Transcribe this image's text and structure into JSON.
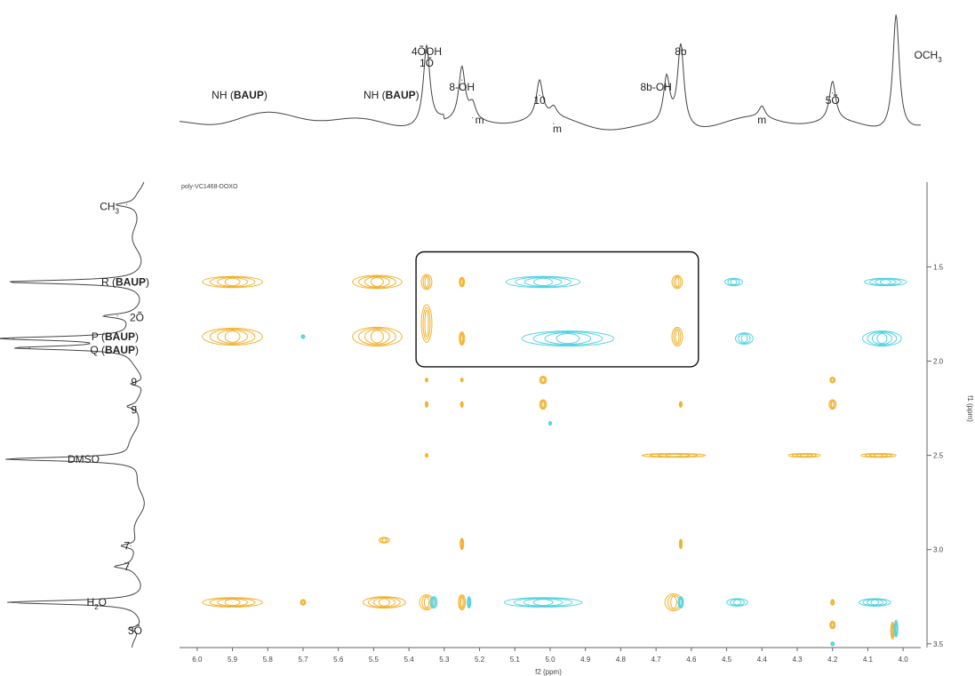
{
  "chart_data": {
    "type": "heatmap",
    "title": "poly-VC1468-DOXO",
    "xlabel": "f2 (ppm)",
    "ylabel": "f1 (ppm)",
    "xlim": [
      6.05,
      3.95
    ],
    "ylim": [
      1.05,
      3.52
    ],
    "x_ticks": [
      "6.0",
      "5.9",
      "5.8",
      "5.7",
      "5.6",
      "5.5",
      "5.4",
      "5.3",
      "5.2",
      "5.1",
      "5.0",
      "4.9",
      "4.8",
      "4.7",
      "4.6",
      "4.5",
      "4.4",
      "4.3",
      "4.2",
      "4.1",
      "4.0"
    ],
    "y_ticks": [
      "1.5",
      "2.0",
      "2.5",
      "3.0",
      "3.5"
    ],
    "colors": {
      "positive": "#f2b22e",
      "negative": "#52d3e3",
      "trace": "#444444"
    },
    "top_spectrum_peaks": [
      {
        "shift": 5.35,
        "height": 0.68
      },
      {
        "shift": 5.25,
        "height": 0.45
      },
      {
        "shift": 5.22,
        "height": 0.13
      },
      {
        "shift": 5.03,
        "height": 0.32
      },
      {
        "shift": 4.99,
        "height": 0.08
      },
      {
        "shift": 4.67,
        "height": 0.4
      },
      {
        "shift": 4.63,
        "height": 0.7
      },
      {
        "shift": 4.4,
        "height": 0.1
      },
      {
        "shift": 4.2,
        "height": 0.34
      },
      {
        "shift": 4.02,
        "height": 1.0
      }
    ],
    "left_spectrum_peaks": [
      {
        "shift": 1.17,
        "height": 0.15
      },
      {
        "shift": 1.58,
        "height": 1.0
      },
      {
        "shift": 1.76,
        "height": 0.22
      },
      {
        "shift": 1.88,
        "height": 1.0
      },
      {
        "shift": 1.93,
        "height": 0.88
      },
      {
        "shift": 2.12,
        "height": 0.1
      },
      {
        "shift": 2.24,
        "height": 0.08
      },
      {
        "shift": 2.52,
        "height": 1.0
      },
      {
        "shift": 2.98,
        "height": 0.12
      },
      {
        "shift": 3.09,
        "height": 0.14
      },
      {
        "shift": 3.28,
        "height": 1.0
      },
      {
        "shift": 3.42,
        "height": 0.09
      }
    ],
    "top_labels": [
      {
        "shift": 5.88,
        "text": "NH (",
        "bold": "BAUP",
        "tail": ")"
      },
      {
        "shift": 5.45,
        "text": "NH (",
        "bold": "BAUP",
        "tail": ")"
      },
      {
        "shift": 5.35,
        "text": "4ÕOH"
      },
      {
        "shift": 5.35,
        "text": "1Õ"
      },
      {
        "shift": 5.25,
        "text": "8-OH"
      },
      {
        "shift": 5.2,
        "text": "m"
      },
      {
        "shift": 5.03,
        "text": "10"
      },
      {
        "shift": 4.98,
        "text": "m"
      },
      {
        "shift": 4.7,
        "text": "8b-OH"
      },
      {
        "shift": 4.63,
        "text": "8b"
      },
      {
        "shift": 4.4,
        "text": "m"
      },
      {
        "shift": 4.2,
        "text": "5Õ"
      },
      {
        "shift": 3.99,
        "text": "OCH",
        "sub": "3"
      }
    ],
    "left_labels": [
      {
        "shift": 1.18,
        "text": "CH",
        "sub": "3"
      },
      {
        "shift": 1.58,
        "text": "R (",
        "bold": "BAUP",
        "tail": ")"
      },
      {
        "shift": 1.77,
        "text": "2Õ"
      },
      {
        "shift": 1.87,
        "text": "P (",
        "bold": "BAUP",
        "tail": ")"
      },
      {
        "shift": 1.94,
        "text": "Q (",
        "bold": "BAUP",
        "tail": ")"
      },
      {
        "shift": 2.11,
        "text": "9"
      },
      {
        "shift": 2.26,
        "text": "9"
      },
      {
        "shift": 2.52,
        "text": "DMSO"
      },
      {
        "shift": 2.98,
        "text": "7"
      },
      {
        "shift": 3.09,
        "text": "7"
      },
      {
        "shift": 3.28,
        "text": "H",
        "sub": "2",
        "tail": "O"
      },
      {
        "shift": 3.43,
        "text": "3Õ"
      }
    ],
    "highlight_box": {
      "x_range": [
        5.38,
        4.58
      ],
      "y_range": [
        1.42,
        2.03
      ]
    },
    "cross_peaks": [
      {
        "x": 5.9,
        "y": 1.58,
        "sign": "positive",
        "w": 0.17,
        "h": 0.06
      },
      {
        "x": 5.49,
        "y": 1.58,
        "sign": "positive",
        "w": 0.14,
        "h": 0.07
      },
      {
        "x": 5.35,
        "y": 1.58,
        "sign": "positive",
        "w": 0.03,
        "h": 0.08
      },
      {
        "x": 5.25,
        "y": 1.58,
        "sign": "positive",
        "w": 0.015,
        "h": 0.05
      },
      {
        "x": 4.64,
        "y": 1.58,
        "sign": "positive",
        "w": 0.03,
        "h": 0.07
      },
      {
        "x": 5.02,
        "y": 1.58,
        "sign": "negative",
        "w": 0.21,
        "h": 0.06
      },
      {
        "x": 4.48,
        "y": 1.58,
        "sign": "negative",
        "w": 0.05,
        "h": 0.04
      },
      {
        "x": 4.05,
        "y": 1.58,
        "sign": "negative",
        "w": 0.12,
        "h": 0.04
      },
      {
        "x": 5.9,
        "y": 1.87,
        "sign": "positive",
        "w": 0.17,
        "h": 0.09
      },
      {
        "x": 5.49,
        "y": 1.87,
        "sign": "positive",
        "w": 0.14,
        "h": 0.1
      },
      {
        "x": 5.35,
        "y": 1.8,
        "sign": "positive",
        "w": 0.03,
        "h": 0.2
      },
      {
        "x": 5.25,
        "y": 1.88,
        "sign": "positive",
        "w": 0.015,
        "h": 0.07
      },
      {
        "x": 4.64,
        "y": 1.87,
        "sign": "positive",
        "w": 0.03,
        "h": 0.1
      },
      {
        "x": 5.7,
        "y": 1.87,
        "sign": "negative",
        "w": 0.01,
        "h": 0.02
      },
      {
        "x": 4.95,
        "y": 1.88,
        "sign": "negative",
        "w": 0.26,
        "h": 0.08
      },
      {
        "x": 4.45,
        "y": 1.88,
        "sign": "negative",
        "w": 0.05,
        "h": 0.06
      },
      {
        "x": 4.06,
        "y": 1.88,
        "sign": "negative",
        "w": 0.11,
        "h": 0.08
      },
      {
        "x": 5.02,
        "y": 2.1,
        "sign": "positive",
        "w": 0.02,
        "h": 0.04
      },
      {
        "x": 5.35,
        "y": 2.1,
        "sign": "positive",
        "w": 0.005,
        "h": 0.02
      },
      {
        "x": 5.25,
        "y": 2.1,
        "sign": "positive",
        "w": 0.005,
        "h": 0.02
      },
      {
        "x": 4.2,
        "y": 2.1,
        "sign": "positive",
        "w": 0.015,
        "h": 0.03
      },
      {
        "x": 5.02,
        "y": 2.23,
        "sign": "positive",
        "w": 0.02,
        "h": 0.05
      },
      {
        "x": 5.35,
        "y": 2.23,
        "sign": "positive",
        "w": 0.008,
        "h": 0.03
      },
      {
        "x": 5.25,
        "y": 2.23,
        "sign": "positive",
        "w": 0.006,
        "h": 0.03
      },
      {
        "x": 4.63,
        "y": 2.23,
        "sign": "positive",
        "w": 0.008,
        "h": 0.03
      },
      {
        "x": 4.2,
        "y": 2.23,
        "sign": "positive",
        "w": 0.02,
        "h": 0.05
      },
      {
        "x": 5.35,
        "y": 2.5,
        "sign": "positive",
        "w": 0.005,
        "h": 0.02
      },
      {
        "x": 4.65,
        "y": 2.5,
        "sign": "positive",
        "w": 0.18,
        "h": 0.02
      },
      {
        "x": 4.28,
        "y": 2.5,
        "sign": "positive",
        "w": 0.09,
        "h": 0.02
      },
      {
        "x": 4.07,
        "y": 2.5,
        "sign": "positive",
        "w": 0.1,
        "h": 0.02
      },
      {
        "x": 5.47,
        "y": 2.95,
        "sign": "positive",
        "w": 0.03,
        "h": 0.03
      },
      {
        "x": 5.25,
        "y": 2.97,
        "sign": "positive",
        "w": 0.01,
        "h": 0.06
      },
      {
        "x": 4.63,
        "y": 2.97,
        "sign": "positive",
        "w": 0.005,
        "h": 0.05
      },
      {
        "x": 5.9,
        "y": 3.28,
        "sign": "positive",
        "w": 0.17,
        "h": 0.05
      },
      {
        "x": 5.7,
        "y": 3.28,
        "sign": "positive",
        "w": 0.015,
        "h": 0.03
      },
      {
        "x": 5.47,
        "y": 3.28,
        "sign": "positive",
        "w": 0.12,
        "h": 0.06
      },
      {
        "x": 5.35,
        "y": 3.28,
        "sign": "positive",
        "w": 0.04,
        "h": 0.08
      },
      {
        "x": 5.25,
        "y": 3.28,
        "sign": "positive",
        "w": 0.02,
        "h": 0.08
      },
      {
        "x": 4.65,
        "y": 3.28,
        "sign": "positive",
        "w": 0.05,
        "h": 0.09
      },
      {
        "x": 4.2,
        "y": 3.28,
        "sign": "positive",
        "w": 0.01,
        "h": 0.03
      },
      {
        "x": 4.2,
        "y": 3.4,
        "sign": "positive",
        "w": 0.015,
        "h": 0.04
      },
      {
        "x": 4.03,
        "y": 3.43,
        "sign": "positive",
        "w": 0.01,
        "h": 0.09
      },
      {
        "x": 5.02,
        "y": 3.28,
        "sign": "negative",
        "w": 0.22,
        "h": 0.05
      },
      {
        "x": 4.47,
        "y": 3.28,
        "sign": "negative",
        "w": 0.06,
        "h": 0.04
      },
      {
        "x": 4.08,
        "y": 3.28,
        "sign": "negative",
        "w": 0.09,
        "h": 0.04
      },
      {
        "x": 5.33,
        "y": 3.28,
        "sign": "negative",
        "w": 0.02,
        "h": 0.06
      },
      {
        "x": 5.23,
        "y": 3.28,
        "sign": "negative",
        "w": 0.01,
        "h": 0.06
      },
      {
        "x": 4.63,
        "y": 3.28,
        "sign": "negative",
        "w": 0.015,
        "h": 0.06
      },
      {
        "x": 4.2,
        "y": 3.5,
        "sign": "negative",
        "w": 0.01,
        "h": 0.02
      },
      {
        "x": 4.02,
        "y": 3.42,
        "sign": "negative",
        "w": 0.01,
        "h": 0.09
      },
      {
        "x": 5.0,
        "y": 2.33,
        "sign": "negative",
        "w": 0.004,
        "h": 0.02
      }
    ]
  }
}
